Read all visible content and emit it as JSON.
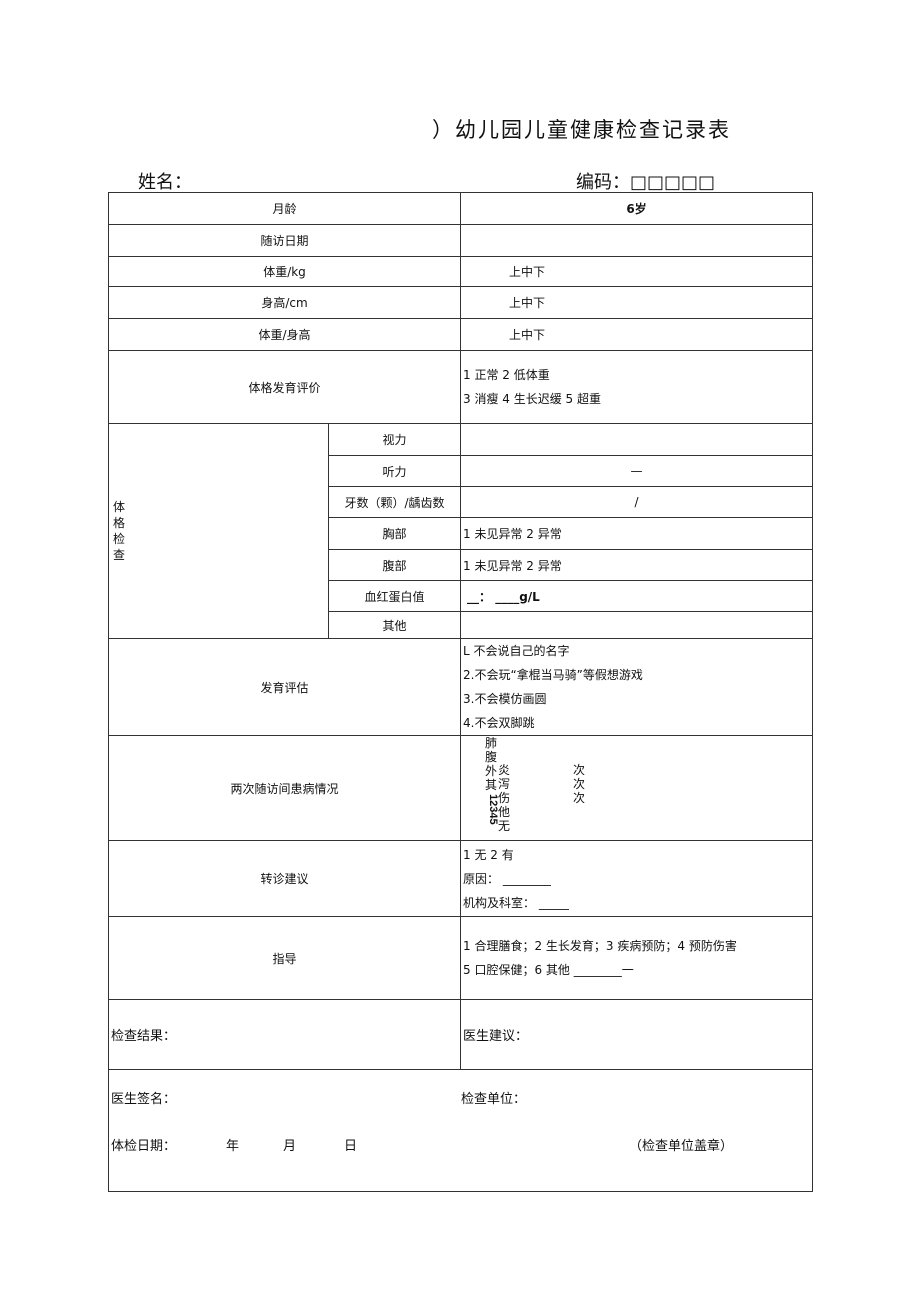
{
  "title": "）幼儿园儿童健康检查记录表",
  "name_label": "姓名：",
  "code_label": "编码：□□□□□",
  "rows": {
    "age": {
      "label": "月龄",
      "value": "6岁"
    },
    "visit_date": {
      "label": "随访日期",
      "value": ""
    },
    "weight": {
      "label": "体重/kg",
      "value": "上中下"
    },
    "height": {
      "label": "身高/cm",
      "value": "上中下"
    },
    "wh": {
      "label": "体重/身高",
      "value": "上中下"
    },
    "growth": {
      "label": "体格发育评价",
      "lines": [
        "1 正常 2 低体重",
        "3 消瘦 4 生长迟缓 5 超重"
      ]
    },
    "exam": {
      "label": "体格检查",
      "items": [
        {
          "label": "视力",
          "value": ""
        },
        {
          "label": "听力",
          "value": "—"
        },
        {
          "label": "牙数（颗）/龋齿数",
          "value": "/"
        },
        {
          "label": "胸部",
          "value": "1 未见异常 2 异常"
        },
        {
          "label": "腹部",
          "value": "1 未见异常 2 异常"
        },
        {
          "label": "血红蛋白值",
          "value": "__：  ____g/L"
        },
        {
          "label": "其他",
          "value": ""
        }
      ]
    },
    "development": {
      "label": "发育评估",
      "lines": [
        "L 不会说自己的名字",
        "2.不会玩“拿棍当马骑”等假想游戏",
        "3.不会模仿画圆",
        "4.不会双脚跳"
      ]
    },
    "illness": {
      "label": "两次随访间患病情况",
      "col1": [
        "肺",
        "腹",
        "外",
        "其"
      ],
      "nums": "12345",
      "col2": [
        "炎",
        "泻",
        "伤",
        "他",
        "无"
      ],
      "times": [
        "次",
        "次",
        "次"
      ]
    },
    "referral": {
      "label": "转诊建议",
      "lines": [
        "1 无 2 有",
        "原因：  ________",
        "机构及科室：  _____"
      ]
    },
    "guidance": {
      "label": "指导",
      "lines": [
        "1 合理膳食；2 生长发育；3 疾病预防；4 预防伤害",
        "5 口腔保健；6 其他  ________一"
      ]
    },
    "result": {
      "left": "检查结果：",
      "right": "医生建议："
    },
    "sign": {
      "doctor": "医生签名：",
      "unit": "检查单位：",
      "date": "体检日期：",
      "year": "年",
      "month": "月",
      "day": "日",
      "stamp": "（检查单位盖章）"
    }
  }
}
